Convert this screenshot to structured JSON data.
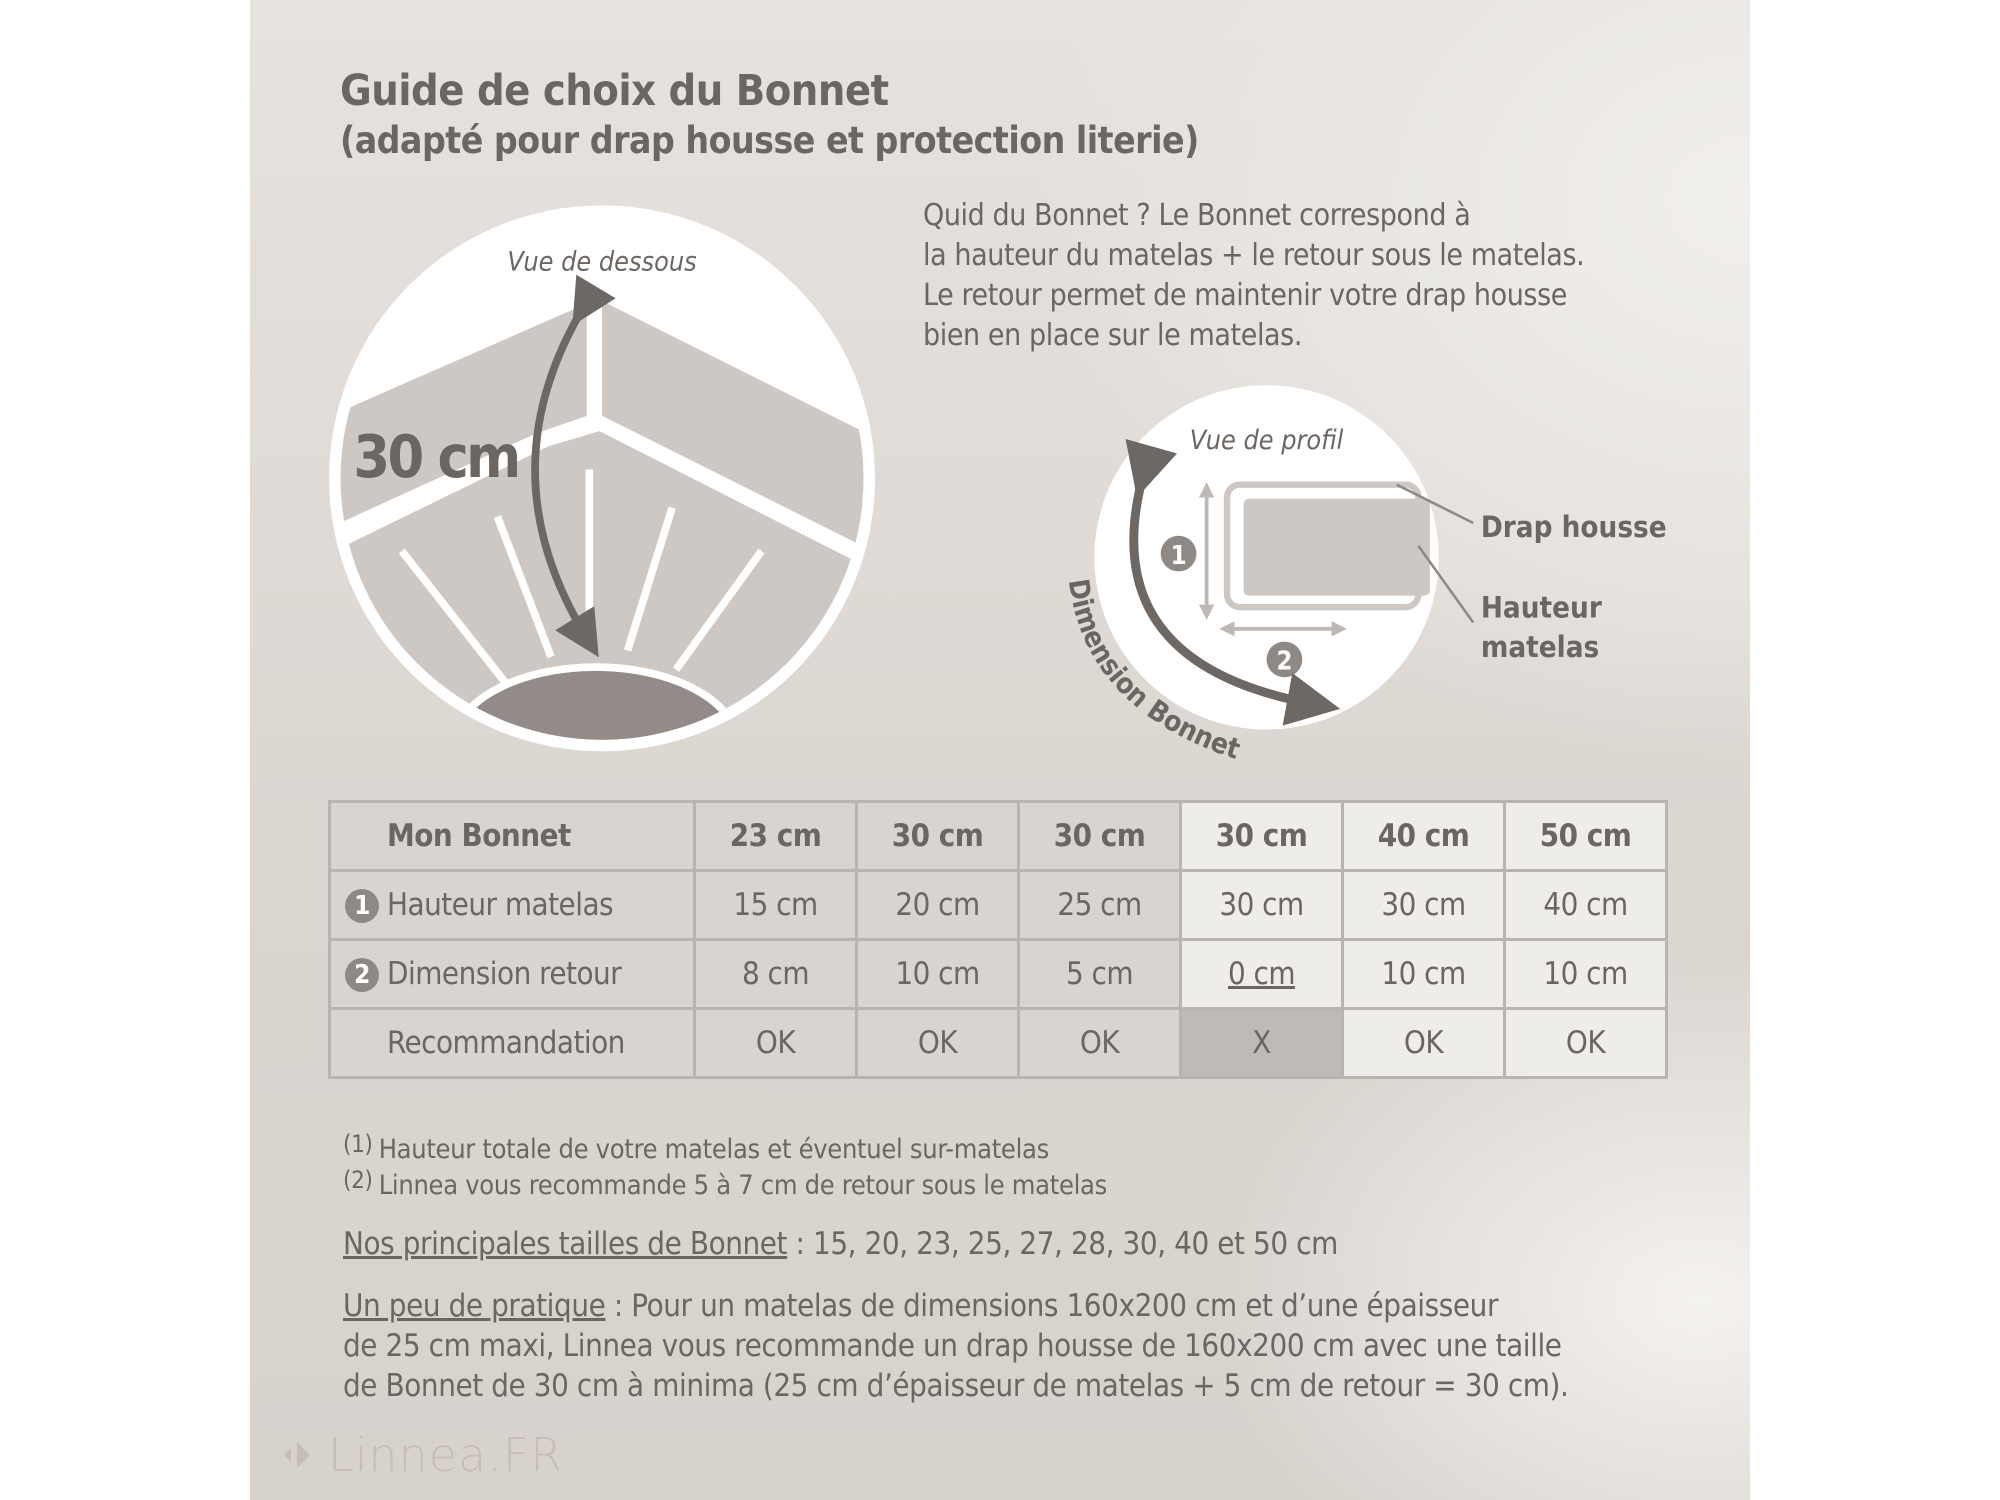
{
  "header": {
    "title": "Guide de choix du Bonnet",
    "subtitle": "(adapté pour drap housse et protection literie)"
  },
  "intro": {
    "lines": [
      "Quid du Bonnet ? Le Bonnet correspond à",
      "la hauteur du matelas + le retour sous le matelas.",
      "Le retour permet de maintenir votre drap housse",
      "bien en place sur le matelas."
    ]
  },
  "diagram_bottom_view": {
    "caption": "Vue de dessous",
    "measure": "30 cm"
  },
  "diagram_profile": {
    "caption": "Vue de profil",
    "badge_1": "1",
    "badge_2": "2",
    "curve_label": "Dimension Bonnet",
    "label_sheet": "Drap housse",
    "label_height_1": "Hauteur",
    "label_height_2": "matelas"
  },
  "table": {
    "header": {
      "label": "Mon Bonnet",
      "values": [
        "23 cm",
        "30 cm",
        "30 cm",
        "30 cm",
        "40 cm",
        "50 cm"
      ]
    },
    "rows": [
      {
        "badge": "1",
        "label": "Hauteur matelas",
        "values": [
          "15 cm",
          "20 cm",
          "25 cm",
          "30 cm",
          "30 cm",
          "40 cm"
        ]
      },
      {
        "badge": "2",
        "label": "Dimension retour",
        "values": [
          "8 cm",
          "10 cm",
          "5 cm",
          "0 cm",
          "10 cm",
          "10 cm"
        ]
      },
      {
        "badge": "",
        "label": "Recommandation",
        "values": [
          "OK",
          "OK",
          "OK",
          "X",
          "OK",
          "OK"
        ]
      }
    ]
  },
  "footnotes": [
    {
      "mark": "(1)",
      "text": "Hauteur totale de votre matelas et éventuel sur-matelas"
    },
    {
      "mark": "(2)",
      "text": "Linnea vous recommande 5 à 7 cm de retour sous le matelas"
    }
  ],
  "sizes": {
    "label": "Nos principales tailles de Bonnet",
    "text": " : 15, 20, 23, 25, 27, 28, 30, 40 et 50 cm"
  },
  "practice": {
    "label": "Un peu de pratique",
    "line1": " : Pour un matelas de dimensions 160x200 cm et d’une épaisseur",
    "line2": "de 25 cm maxi, Linnea vous recommande un drap housse de 160x200 cm avec une taille",
    "line3": "de Bonnet de 30 cm à minima (25 cm d’épaisseur de matelas + 5 cm de retour = 30 cm)."
  },
  "logo": {
    "text": "Linnea.FR"
  },
  "colors": {
    "text": "#6c6662",
    "cell_dark": "#d9d4cf",
    "cell_light": "#efedea",
    "cell_bad": "#bdbab8",
    "badge": "#8f8985"
  }
}
